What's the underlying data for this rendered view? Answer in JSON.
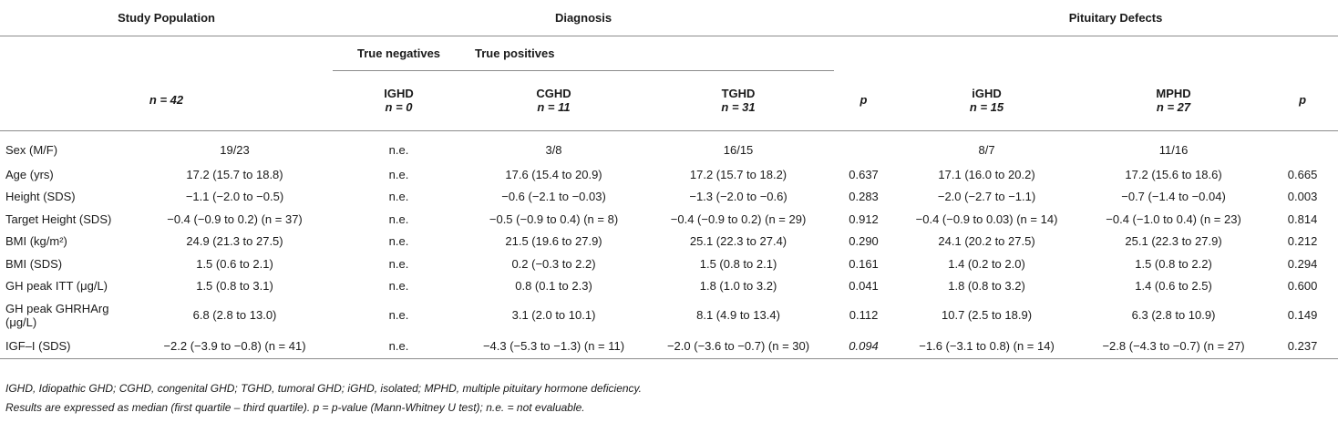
{
  "headers": {
    "study_population": "Study Population",
    "diagnosis": "Diagnosis",
    "pituitary_defects": "Pituitary Defects",
    "true_negatives": "True negatives",
    "true_positives": "True positives",
    "n_total": "n = 42",
    "ighd": "IGHD",
    "ighd_n": "n = 0",
    "cghd": "CGHD",
    "cghd_n": "n = 11",
    "tghd": "TGHD",
    "tghd_n": "n = 31",
    "p1": "p",
    "isghd": "iGHD",
    "isghd_n": "n = 15",
    "mphd": "MPHD",
    "mphd_n": "n = 27",
    "p2": "p"
  },
  "rows": [
    {
      "label": "Sex (M/F)",
      "total": "19/23",
      "ighd": "n.e.",
      "cghd": "3/8",
      "tghd": "16/15",
      "p1": "",
      "isghd": "8/7",
      "mphd": "11/16",
      "p2": ""
    },
    {
      "label": "Age (yrs)",
      "total": "17.2 (15.7 to 18.8)",
      "ighd": "n.e.",
      "cghd": "17.6 (15.4 to 20.9)",
      "tghd": "17.2 (15.7 to 18.2)",
      "p1": "0.637",
      "isghd": "17.1 (16.0 to 20.2)",
      "mphd": "17.2 (15.6 to 18.6)",
      "p2": "0.665"
    },
    {
      "label": "Height (SDS)",
      "total": "−1.1 (−2.0 to −0.5)",
      "ighd": "n.e.",
      "cghd": "−0.6 (−2.1 to −0.03)",
      "tghd": "−1.3 (−2.0 to −0.6)",
      "p1": "0.283",
      "isghd": "−2.0 (−2.7 to −1.1)",
      "mphd": "−0.7 (−1.4 to −0.04)",
      "p2": "0.003"
    },
    {
      "label": "Target Height (SDS)",
      "total": "−0.4 (−0.9 to 0.2) (n = 37)",
      "ighd": "n.e.",
      "cghd": "−0.5 (−0.9 to 0.4) (n = 8)",
      "tghd": "−0.4 (−0.9 to 0.2) (n = 29)",
      "p1": "0.912",
      "isghd": "−0.4 (−0.9 to 0.03) (n = 14)",
      "mphd": "−0.4 (−1.0 to 0.4) (n = 23)",
      "p2": "0.814"
    },
    {
      "label": "BMI (kg/m²)",
      "total": "24.9 (21.3 to 27.5)",
      "ighd": "n.e.",
      "cghd": "21.5 (19.6 to 27.9)",
      "tghd": "25.1 (22.3 to 27.4)",
      "p1": "0.290",
      "isghd": "24.1 (20.2 to 27.5)",
      "mphd": "25.1 (22.3 to 27.9)",
      "p2": "0.212"
    },
    {
      "label": "BMI (SDS)",
      "total": "1.5 (0.6 to 2.1)",
      "ighd": "n.e.",
      "cghd": "0.2 (−0.3 to 2.2)",
      "tghd": "1.5 (0.8 to 2.1)",
      "p1": "0.161",
      "isghd": "1.4 (0.2 to 2.0)",
      "mphd": "1.5 (0.8 to 2.2)",
      "p2": "0.294"
    },
    {
      "label": "GH peak ITT (μg/L)",
      "total": "1.5 (0.8 to 3.1)",
      "ighd": "n.e.",
      "cghd": "0.8 (0.1 to 2.3)",
      "tghd": "1.8 (1.0 to 3.2)",
      "p1": "0.041",
      "isghd": "1.8 (0.8 to 3.2)",
      "mphd": "1.4 (0.6 to 2.5)",
      "p2": "0.600"
    },
    {
      "label": "GH peak GHRHArg (μg/L)",
      "total": "6.8 (2.8 to 13.0)",
      "ighd": "n.e.",
      "cghd": "3.1 (2.0 to 10.1)",
      "tghd": "8.1 (4.9 to 13.4)",
      "p1": "0.112",
      "isghd": "10.7 (2.5 to 18.9)",
      "mphd": "6.3 (2.8 to 10.9)",
      "p2": "0.149"
    },
    {
      "label": "IGF–I (SDS)",
      "total": "−2.2 (−3.9 to −0.8) (n = 41)",
      "ighd": "n.e.",
      "cghd": "−4.3 (−5.3 to −1.3) (n = 11)",
      "tghd": "−2.0 (−3.6 to −0.7) (n = 30)",
      "p1": "0.094",
      "isghd": "−1.6 (−3.1 to 0.8) (n = 14)",
      "mphd": "−2.8 (−4.3 to −0.7) (n = 27)",
      "p2": "0.237"
    }
  ],
  "footnotes": {
    "line1": "IGHD, Idiopathic GHD; CGHD, congenital GHD; TGHD, tumoral GHD; iGHD, isolated; MPHD, multiple pituitary hormone deficiency.",
    "line2": "Results are expressed as median (first quartile – third quartile). p = p-value (Mann-Whitney U test); n.e. = not evaluable."
  }
}
